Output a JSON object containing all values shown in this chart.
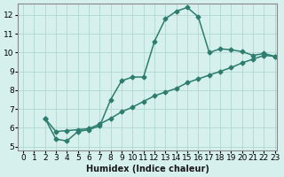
{
  "xlabel": "Humidex (Indice chaleur)",
  "bg_color": "#d6f0ee",
  "line_color": "#2d7d6e",
  "xlim": [
    -0.5,
    23.2
  ],
  "ylim": [
    4.8,
    12.6
  ],
  "xticks": [
    0,
    1,
    2,
    3,
    4,
    5,
    6,
    7,
    8,
    9,
    10,
    11,
    12,
    13,
    14,
    15,
    16,
    17,
    18,
    19,
    20,
    21,
    22,
    23
  ],
  "yticks": [
    5,
    6,
    7,
    8,
    9,
    10,
    11,
    12
  ],
  "line1_x": [
    2,
    3,
    4,
    5,
    6,
    7,
    8,
    9,
    10,
    11,
    12,
    13,
    14,
    15,
    16,
    17,
    18,
    19,
    20,
    21,
    22,
    23
  ],
  "line1_y": [
    6.5,
    5.4,
    5.3,
    5.8,
    5.9,
    6.1,
    7.5,
    8.5,
    8.7,
    8.7,
    10.6,
    11.8,
    12.2,
    12.4,
    11.9,
    10.0,
    10.2,
    10.15,
    10.05,
    9.85,
    9.95,
    9.8
  ],
  "line2_x": [
    2,
    3,
    4,
    5,
    6,
    7,
    8,
    9,
    10,
    11,
    12,
    13,
    14,
    15,
    16,
    17,
    18,
    19,
    20,
    21,
    22,
    23
  ],
  "line2_y": [
    6.5,
    5.8,
    5.85,
    5.9,
    5.95,
    6.2,
    6.5,
    6.85,
    7.1,
    7.4,
    7.7,
    7.9,
    8.1,
    8.4,
    8.6,
    8.8,
    9.0,
    9.2,
    9.45,
    9.65,
    9.85,
    9.8
  ],
  "marker_size": 2.5,
  "line_width": 1.1,
  "grid_color": "#b0d8d0",
  "tick_fontsize": 6.5
}
